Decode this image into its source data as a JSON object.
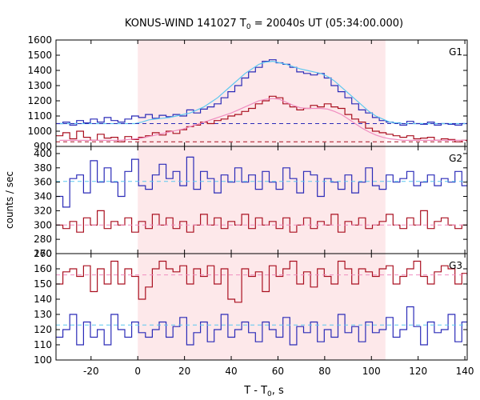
{
  "chart_data": {
    "type": "line",
    "title": "KONUS-WIND 141027 T",
    "title_sub": "0",
    "title_rest": " = 20040s UT (05:34:00.000)",
    "xlabel": "T - T",
    "xlabel_sub": "0",
    "xlabel_rest": ", s",
    "ylabel": "counts / sec",
    "xlim": [
      -35,
      141
    ],
    "x_ticks": [
      -20,
      0,
      20,
      40,
      60,
      80,
      100,
      120,
      140
    ],
    "shaded_interval": [
      0,
      106
    ],
    "shade_color": "#fde8ea",
    "colors": {
      "blue": "#2b2bb8",
      "darkred": "#aa1020",
      "cyan": "#5cc8f0",
      "pink": "#f08cc0"
    },
    "panels": [
      {
        "label": "G1",
        "ylim": [
          900,
          1600
        ],
        "y_ticks": [
          900,
          1000,
          1100,
          1200,
          1300,
          1400,
          1500,
          1600
        ],
        "step_x0": -35,
        "step_dx": 2.944,
        "series": [
          {
            "name": "",
            "color": "#2b2bb8",
            "style": "step",
            "values": [
              1050,
              1060,
              1040,
              1070,
              1055,
              1080,
              1060,
              1090,
              1070,
              1060,
              1080,
              1100,
              1090,
              1110,
              1085,
              1105,
              1095,
              1110,
              1100,
              1140,
              1120,
              1145,
              1160,
              1180,
              1220,
              1260,
              1300,
              1350,
              1390,
              1420,
              1460,
              1470,
              1450,
              1440,
              1420,
              1390,
              1380,
              1370,
              1380,
              1350,
              1300,
              1260,
              1220,
              1180,
              1140,
              1120,
              1090,
              1070,
              1060,
              1055,
              1040,
              1065,
              1050,
              1045,
              1060,
              1040,
              1050,
              1045,
              1040,
              1050
            ]
          },
          {
            "name": "",
            "color": "#5cc8f0",
            "style": "smooth",
            "values": [
              1050,
              1050,
              1050,
              1050,
              1050,
              1050,
              1050,
              1050,
              1050,
              1050,
              1050,
              1050,
              1060,
              1075,
              1080,
              1085,
              1090,
              1100,
              1110,
              1120,
              1140,
              1160,
              1190,
              1220,
              1260,
              1300,
              1340,
              1380,
              1410,
              1440,
              1455,
              1460,
              1450,
              1440,
              1425,
              1410,
              1400,
              1390,
              1380,
              1360,
              1330,
              1290,
              1250,
              1210,
              1170,
              1130,
              1100,
              1080,
              1060,
              1055,
              1050,
              1050,
              1050,
              1050,
              1050,
              1050,
              1050,
              1050,
              1050,
              1050
            ]
          },
          {
            "name": "",
            "color": "#2b2bb8",
            "style": "dashed",
            "values": [
              1050
            ]
          },
          {
            "name": "",
            "color": "#aa1020",
            "style": "step",
            "values": [
              970,
              990,
              950,
              1000,
              960,
              940,
              980,
              955,
              960,
              930,
              965,
              945,
              960,
              970,
              990,
              975,
              1000,
              985,
              1010,
              1030,
              1040,
              1060,
              1050,
              1070,
              1080,
              1100,
              1110,
              1130,
              1150,
              1180,
              1200,
              1230,
              1220,
              1180,
              1160,
              1140,
              1150,
              1170,
              1160,
              1180,
              1160,
              1150,
              1110,
              1080,
              1060,
              1020,
              1000,
              990,
              980,
              970,
              960,
              970,
              950,
              955,
              960,
              940,
              950,
              945,
              930,
              940
            ]
          },
          {
            "name": "",
            "color": "#f08cc0",
            "style": "smooth",
            "values": [
              940,
              940,
              940,
              940,
              940,
              940,
              940,
              940,
              940,
              940,
              945,
              950,
              955,
              965,
              975,
              985,
              995,
              1005,
              1015,
              1030,
              1045,
              1060,
              1075,
              1090,
              1105,
              1120,
              1140,
              1160,
              1180,
              1200,
              1210,
              1215,
              1210,
              1190,
              1170,
              1155,
              1150,
              1150,
              1150,
              1145,
              1130,
              1110,
              1080,
              1050,
              1020,
              995,
              975,
              960,
              950,
              945,
              940,
              940,
              940,
              940,
              940,
              940,
              940,
              940,
              940,
              940
            ]
          },
          {
            "name": "",
            "color": "#aa1020",
            "style": "dashed",
            "values": [
              930
            ]
          }
        ]
      },
      {
        "label": "G2",
        "ylim": [
          260,
          410
        ],
        "y_ticks": [
          260,
          280,
          300,
          320,
          340,
          360,
          380,
          400
        ],
        "step_x0": -35,
        "step_dx": 2.944,
        "series": [
          {
            "name": "",
            "color": "#2b2bb8",
            "style": "step",
            "values": [
              340,
              325,
              365,
              370,
              345,
              390,
              360,
              380,
              360,
              340,
              375,
              392,
              355,
              350,
              370,
              385,
              365,
              375,
              355,
              395,
              350,
              375,
              365,
              345,
              370,
              360,
              380,
              360,
              370,
              350,
              375,
              360,
              350,
              380,
              365,
              345,
              375,
              370,
              340,
              365,
              360,
              350,
              370,
              345,
              360,
              380,
              355,
              350,
              370,
              360,
              365,
              375,
              355,
              360,
              370,
              355,
              365,
              360,
              375,
              355
            ]
          },
          {
            "name": "",
            "color": "#5cc8f0",
            "style": "dashed",
            "values": [
              361
            ]
          },
          {
            "name": "",
            "color": "#aa1020",
            "style": "step",
            "values": [
              300,
              295,
              305,
              290,
              310,
              300,
              320,
              295,
              305,
              300,
              310,
              290,
              305,
              295,
              315,
              300,
              310,
              295,
              305,
              290,
              300,
              315,
              300,
              310,
              295,
              305,
              300,
              315,
              295,
              310,
              300,
              305,
              295,
              310,
              290,
              300,
              310,
              295,
              305,
              300,
              315,
              290,
              305,
              300,
              310,
              295,
              300,
              305,
              315,
              300,
              295,
              310,
              300,
              320,
              295,
              305,
              310,
              300,
              295,
              300
            ]
          },
          {
            "name": "",
            "color": "#f08cc0",
            "style": "dashed",
            "values": [
              300
            ]
          }
        ]
      },
      {
        "label": "G3",
        "ylim": [
          100,
          170
        ],
        "y_ticks": [
          100,
          110,
          120,
          130,
          140,
          150,
          160,
          170
        ],
        "step_x0": -35,
        "step_dx": 2.944,
        "series": [
          {
            "name": "",
            "color": "#aa1020",
            "style": "step",
            "values": [
              150,
              158,
              160,
              155,
              162,
              145,
              160,
              150,
              165,
              150,
              160,
              155,
              140,
              148,
              160,
              165,
              160,
              158,
              162,
              150,
              160,
              155,
              162,
              150,
              160,
              140,
              138,
              160,
              155,
              158,
              145,
              162,
              155,
              160,
              165,
              150,
              158,
              148,
              160,
              155,
              150,
              165,
              160,
              150,
              160,
              158,
              155,
              160,
              162,
              150,
              155,
              160,
              165,
              155,
              150,
              158,
              162,
              160,
              150,
              157
            ]
          },
          {
            "name": "",
            "color": "#f08cc0",
            "style": "dashed",
            "values": [
              156
            ]
          },
          {
            "name": "",
            "color": "#2b2bb8",
            "style": "step",
            "values": [
              115,
              120,
              130,
              110,
              125,
              115,
              120,
              110,
              130,
              120,
              115,
              125,
              118,
              115,
              120,
              125,
              115,
              122,
              128,
              110,
              118,
              125,
              112,
              120,
              130,
              115,
              120,
              125,
              118,
              112,
              125,
              120,
              115,
              128,
              110,
              122,
              118,
              125,
              112,
              120,
              115,
              130,
              118,
              122,
              112,
              125,
              118,
              120,
              128,
              115,
              120,
              135,
              122,
              110,
              125,
              118,
              120,
              130,
              112,
              125
            ]
          },
          {
            "name": "",
            "color": "#5cc8f0",
            "style": "dashed",
            "values": [
              123
            ]
          }
        ]
      }
    ]
  }
}
